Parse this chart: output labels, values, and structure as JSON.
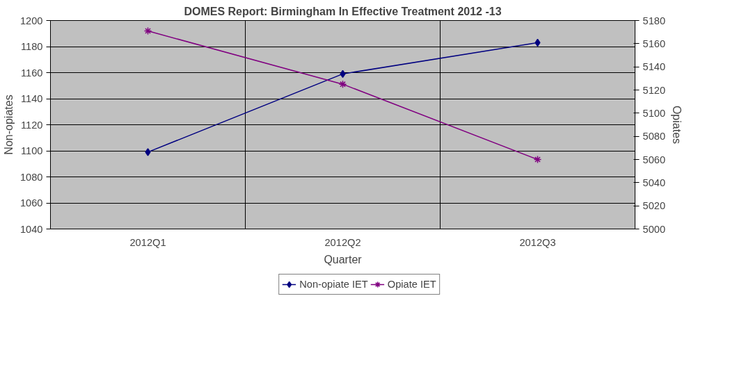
{
  "chart_data": {
    "type": "line",
    "title": "DOMES Report: Birmingham In Effective Treatment 2012 -13",
    "xlabel": "Quarter",
    "ylabel": "Non-opiates",
    "y2label": "Opiates",
    "categories": [
      "2012Q1",
      "2012Q2",
      "2012Q3"
    ],
    "series": [
      {
        "name": "Non-opiate IET",
        "color": "#000080",
        "marker": "diamond",
        "values": [
          1099,
          1159,
          1183
        ]
      },
      {
        "name": "Opiate IET",
        "color": "#800080",
        "marker": "cross",
        "axis": "y2",
        "values": [
          5171,
          5125,
          5060
        ]
      }
    ],
    "ylim": [
      1040,
      1200
    ],
    "yticks": [
      1040,
      1060,
      1080,
      1100,
      1120,
      1140,
      1160,
      1180,
      1200
    ],
    "y2lim": [
      5000,
      5180
    ],
    "y2ticks": [
      5000,
      5020,
      5040,
      5060,
      5080,
      5100,
      5120,
      5140,
      5160,
      5180
    ],
    "grid": true,
    "legend": "bottom",
    "line_style": "solid"
  }
}
